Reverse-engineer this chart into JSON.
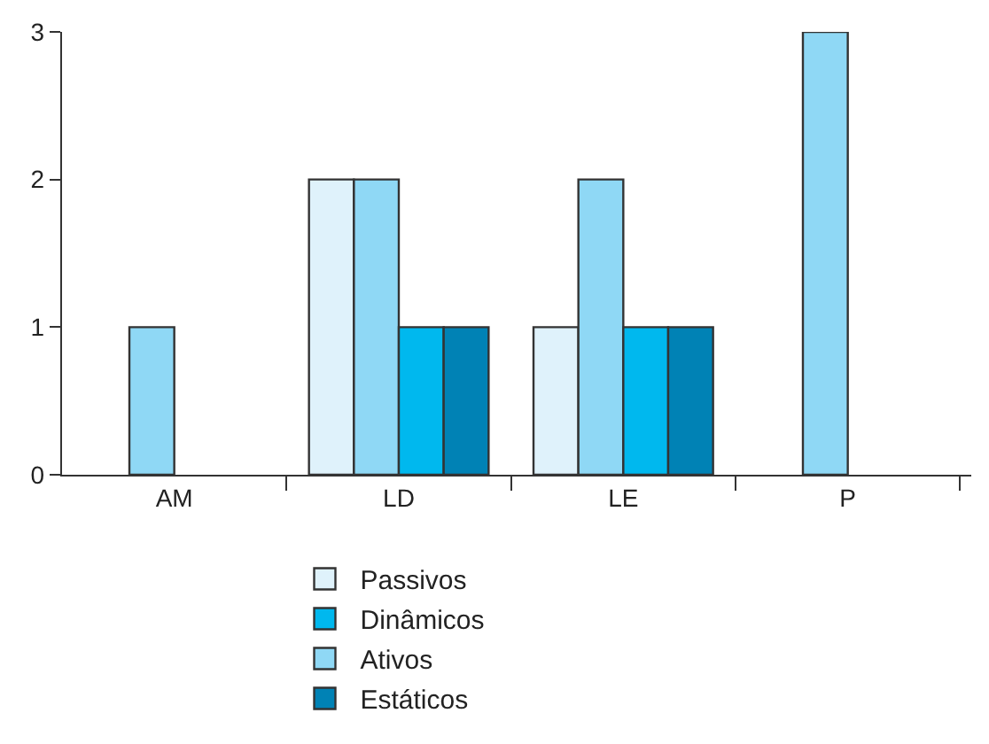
{
  "chart_data": {
    "type": "bar",
    "categories": [
      "AM",
      "LD",
      "LE",
      "P"
    ],
    "series": [
      {
        "name": "Passivos",
        "color": "#dff2fb",
        "values": [
          null,
          2,
          1,
          null
        ]
      },
      {
        "name": "Ativos",
        "color": "#8fd8f5",
        "values": [
          1,
          2,
          2,
          3
        ]
      },
      {
        "name": "Dinâmicos",
        "color": "#00b8ee",
        "values": [
          null,
          1,
          1,
          null
        ]
      },
      {
        "name": "Estáticos",
        "color": "#0082b5",
        "values": [
          null,
          1,
          1,
          null
        ]
      }
    ],
    "ylim": [
      0,
      3
    ],
    "yticks": [
      0,
      1,
      2,
      3
    ],
    "legend": "bottom"
  }
}
